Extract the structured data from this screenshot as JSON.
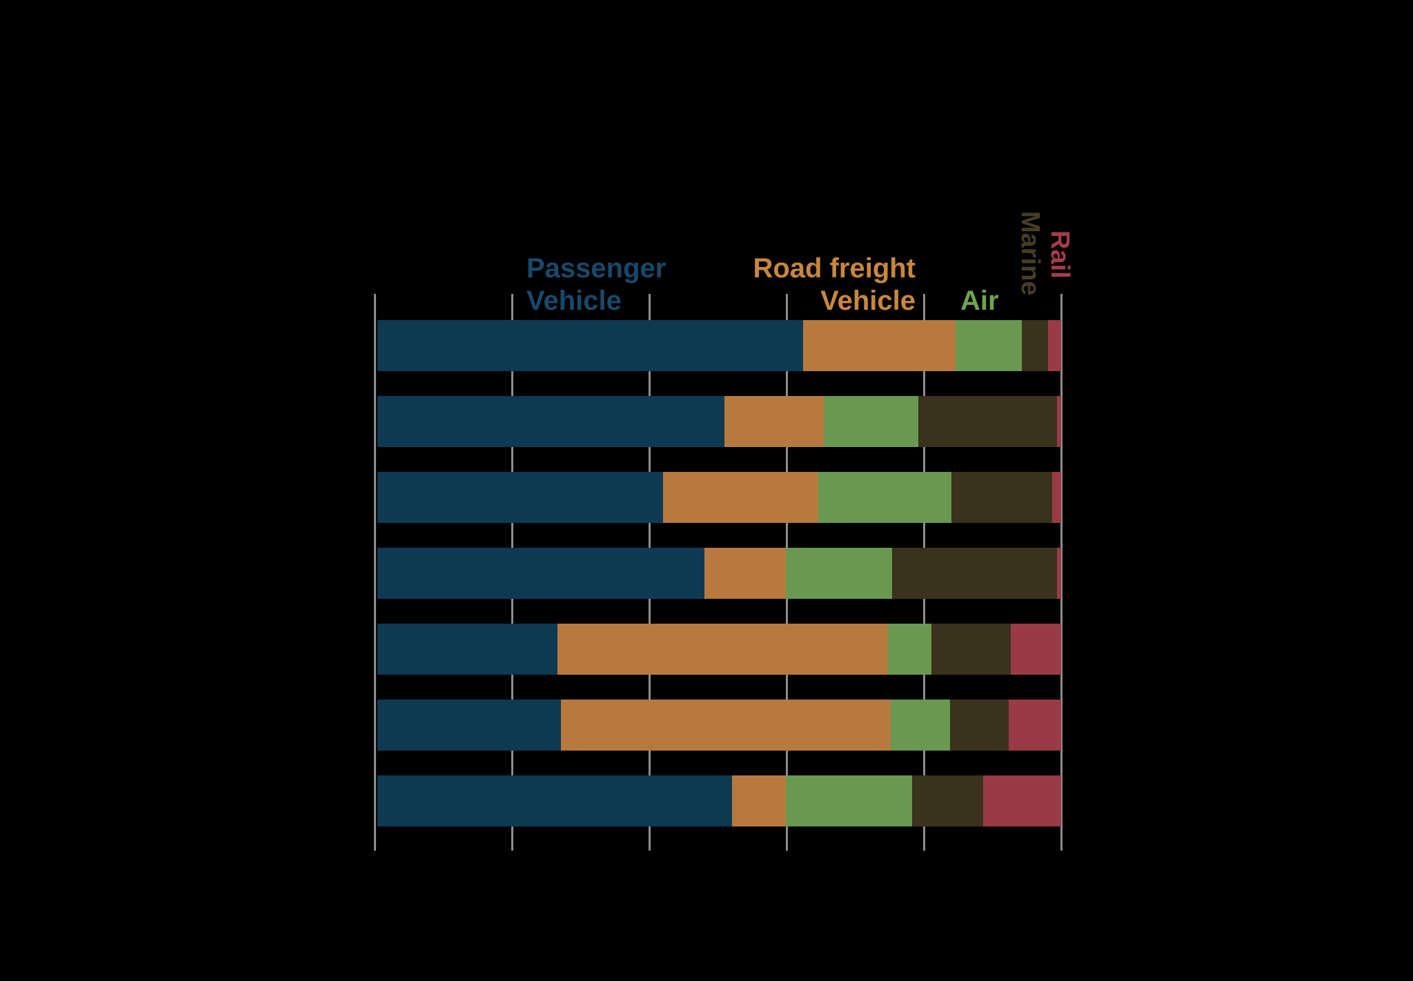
{
  "canvas": {
    "background": "#000000"
  },
  "header_labels": {
    "passenger": {
      "line1": "Passenger",
      "line2": "Vehicle"
    },
    "road_freight": {
      "line1": "Road freight",
      "line2": "Vehicle"
    },
    "air": "Air",
    "marine": "Marine",
    "rail": "Rail"
  },
  "chart_data": {
    "type": "bar",
    "orientation": "horizontal",
    "stacked": true,
    "stack_total": 100,
    "units": "percent of total",
    "title": "",
    "xlabel": "",
    "ylabel": "",
    "x_axis": {
      "min": 0,
      "max": 100,
      "gridlines_pct": [
        0,
        20,
        40,
        60,
        80,
        100
      ],
      "tick_labels_visible": false,
      "grid": true,
      "grid_color": "#8e8e8e"
    },
    "categories": [
      "",
      "",
      "",
      "",
      "",
      "",
      ""
    ],
    "category_labels_visible": false,
    "legend_position": "column headers above chart",
    "series": [
      {
        "name": "Passenger Vehicle",
        "color": "#0d3a52",
        "label_color": "#17496a",
        "values": [
          62.3,
          50.8,
          41.8,
          47.8,
          26.3,
          26.8,
          51.9
        ]
      },
      {
        "name": "Road freight Vehicle",
        "color": "#b7793d",
        "label_color": "#c8873f",
        "values": [
          22.3,
          14.5,
          22.7,
          11.9,
          48.4,
          48.3,
          7.8
        ]
      },
      {
        "name": "Air",
        "color": "#699850",
        "label_color": "#70a34d",
        "values": [
          9.6,
          13.8,
          19.5,
          15.6,
          6.3,
          8.7,
          18.5
        ]
      },
      {
        "name": "Marine",
        "color": "#3a321d",
        "label_color": "#463d25",
        "values": [
          3.9,
          20.3,
          14.7,
          24.1,
          11.6,
          8.5,
          10.4
        ]
      },
      {
        "name": "Rail",
        "color": "#9a3a45",
        "label_color": "#a33d4a",
        "values": [
          1.9,
          0.6,
          1.3,
          0.6,
          7.4,
          7.7,
          11.4
        ]
      }
    ]
  }
}
